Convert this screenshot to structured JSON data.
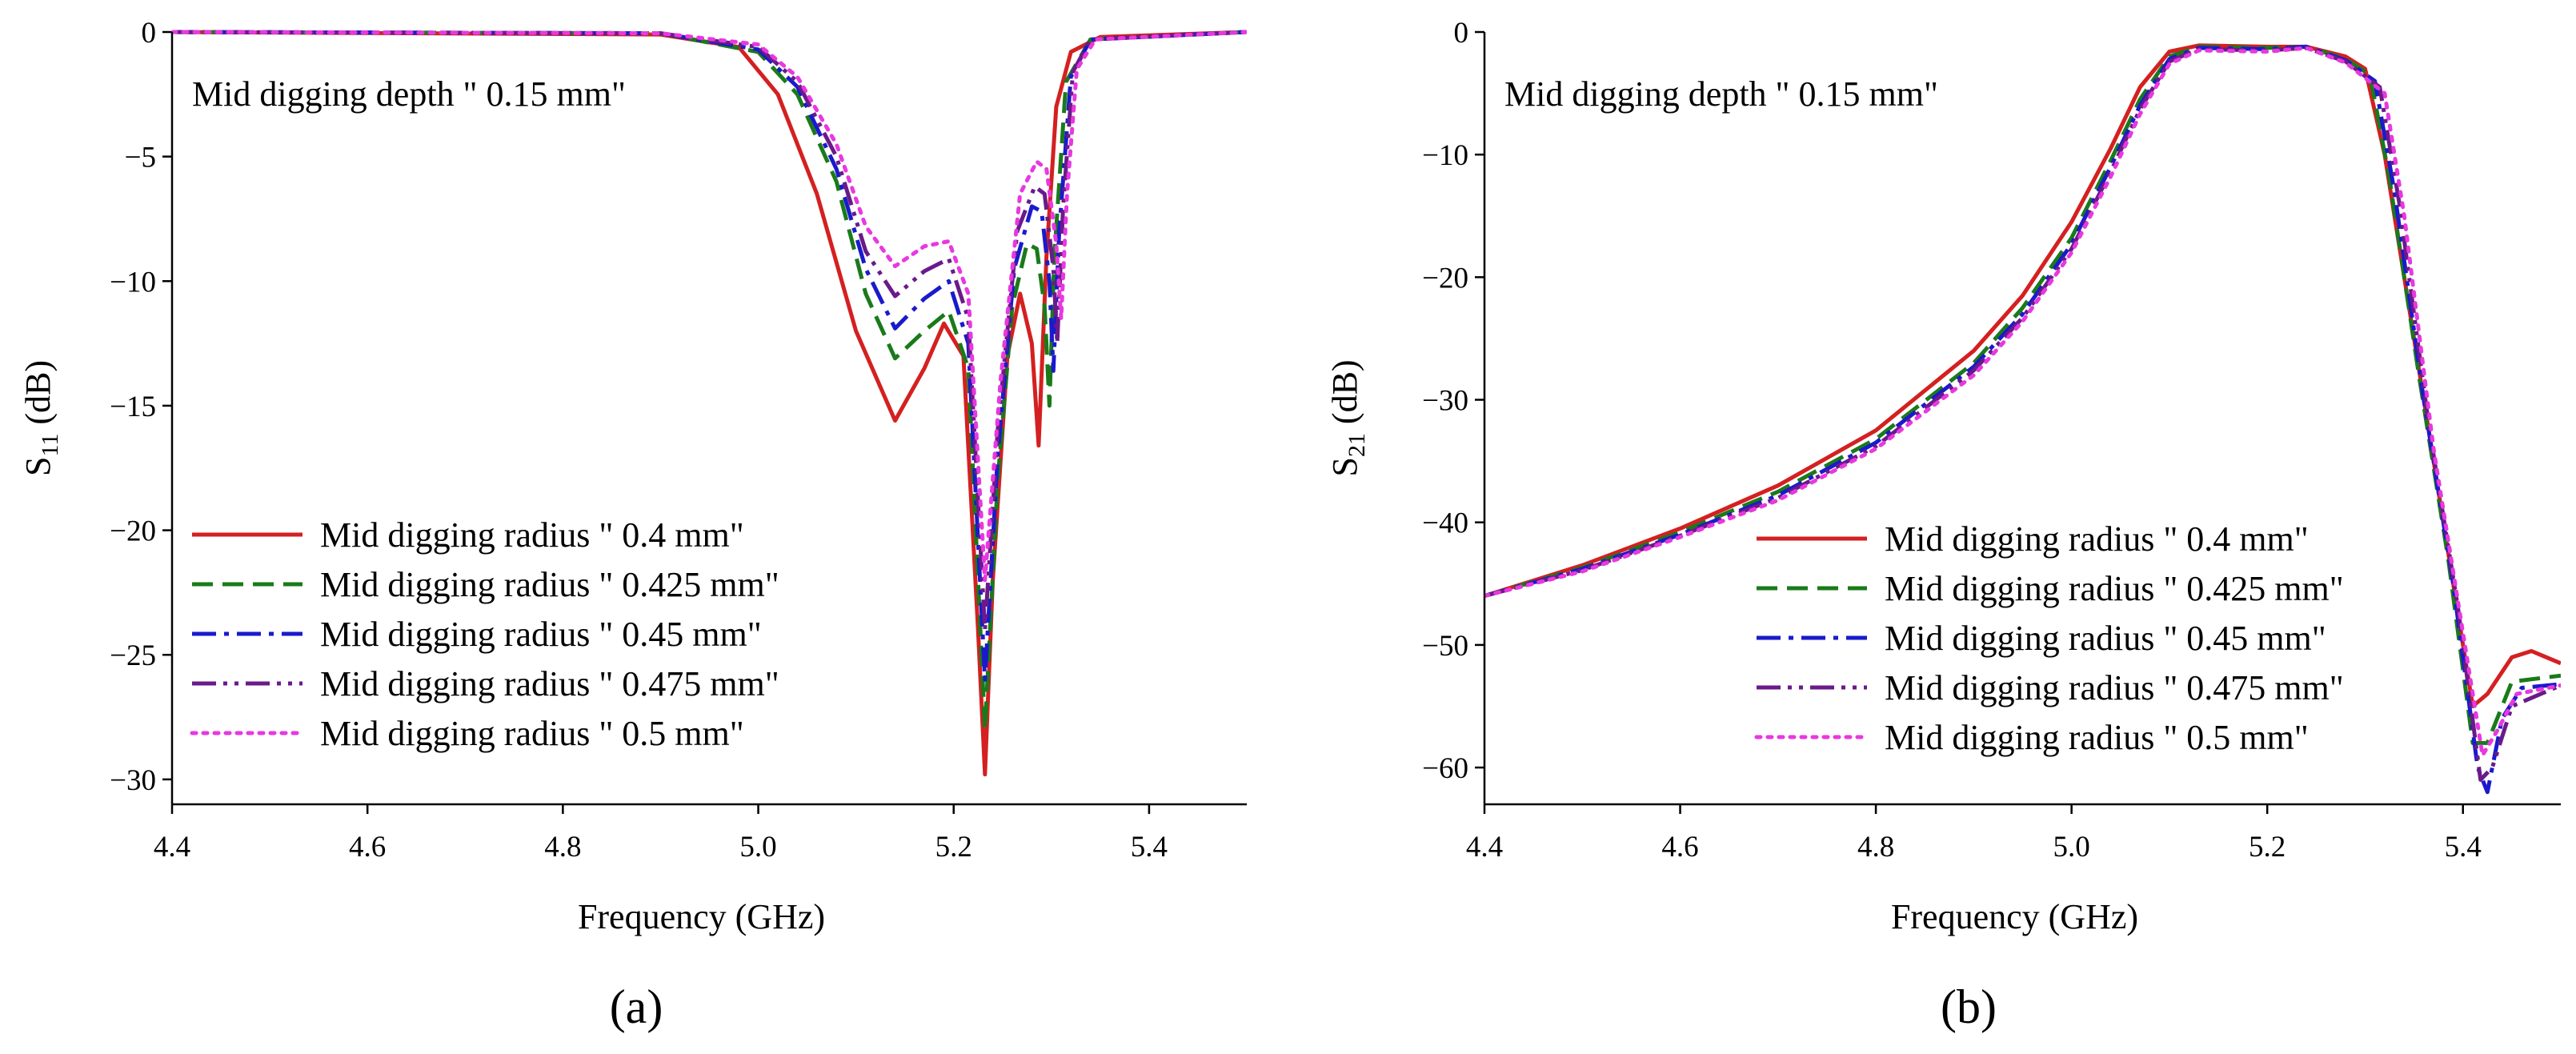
{
  "chart_data": [
    {
      "type": "line",
      "panel_label": "(a)",
      "annotation": "Mid digging depth \" 0.15 mm\"",
      "xlabel": "Frequency (GHz)",
      "ylabel_main": "S",
      "ylabel_sub": "11",
      "ylabel_unit": " (dB)",
      "xlim": [
        4.4,
        5.5
      ],
      "ylim": [
        -31,
        0
      ],
      "xticks": [
        4.4,
        4.6,
        4.8,
        5.0,
        5.2,
        5.4
      ],
      "xtick_labels": [
        "4.4",
        "4.6",
        "4.8",
        "5.0",
        "5.2",
        "5.4"
      ],
      "yticks": [
        0,
        -5,
        -10,
        -15,
        -20,
        -25,
        -30
      ],
      "ytick_labels": [
        "0",
        "−5",
        "−10",
        "−15",
        "−20",
        "−25",
        "−30"
      ],
      "legend_position": "lower-left",
      "series": [
        {
          "name": "Mid digging radius \" 0.4 mm\"",
          "color": "#d42020",
          "dash": "solid",
          "points": [
            [
              4.4,
              0
            ],
            [
              4.9,
              -0.1
            ],
            [
              4.98,
              -0.6
            ],
            [
              5.02,
              -2.5
            ],
            [
              5.06,
              -6.5
            ],
            [
              5.1,
              -12
            ],
            [
              5.14,
              -15.6
            ],
            [
              5.17,
              -13.5
            ],
            [
              5.19,
              -11.7
            ],
            [
              5.21,
              -13
            ],
            [
              5.225,
              -24
            ],
            [
              5.232,
              -29.8
            ],
            [
              5.24,
              -22
            ],
            [
              5.255,
              -13
            ],
            [
              5.268,
              -10.5
            ],
            [
              5.28,
              -12.5
            ],
            [
              5.287,
              -16.6
            ],
            [
              5.295,
              -9
            ],
            [
              5.305,
              -3
            ],
            [
              5.32,
              -0.8
            ],
            [
              5.35,
              -0.2
            ],
            [
              5.5,
              0
            ]
          ]
        },
        {
          "name": "Mid digging radius \" 0.425 mm\"",
          "color": "#1a7a1a",
          "dash": "dashed",
          "points": [
            [
              4.4,
              0
            ],
            [
              4.9,
              -0.05
            ],
            [
              5.0,
              -0.8
            ],
            [
              5.04,
              -2.5
            ],
            [
              5.08,
              -6
            ],
            [
              5.11,
              -10.5
            ],
            [
              5.14,
              -13.1
            ],
            [
              5.17,
              -12
            ],
            [
              5.195,
              -11.2
            ],
            [
              5.215,
              -13.5
            ],
            [
              5.232,
              -28
            ],
            [
              5.245,
              -18
            ],
            [
              5.26,
              -11
            ],
            [
              5.275,
              -8.5
            ],
            [
              5.285,
              -8.7
            ],
            [
              5.293,
              -11
            ],
            [
              5.298,
              -15
            ],
            [
              5.303,
              -9
            ],
            [
              5.315,
              -2
            ],
            [
              5.34,
              -0.3
            ],
            [
              5.5,
              0
            ]
          ]
        },
        {
          "name": "Mid digging radius \" 0.45 mm\"",
          "color": "#1a1acc",
          "dash": "dashdot",
          "points": [
            [
              4.4,
              0
            ],
            [
              4.9,
              -0.05
            ],
            [
              5.0,
              -0.7
            ],
            [
              5.04,
              -2.2
            ],
            [
              5.08,
              -5.5
            ],
            [
              5.11,
              -9.5
            ],
            [
              5.14,
              -11.9
            ],
            [
              5.17,
              -10.7
            ],
            [
              5.195,
              -10.0
            ],
            [
              5.215,
              -12.5
            ],
            [
              5.232,
              -26
            ],
            [
              5.245,
              -17
            ],
            [
              5.262,
              -9.5
            ],
            [
              5.28,
              -7
            ],
            [
              5.29,
              -7.2
            ],
            [
              5.298,
              -10
            ],
            [
              5.302,
              -13.6
            ],
            [
              5.308,
              -8
            ],
            [
              5.32,
              -1.8
            ],
            [
              5.34,
              -0.3
            ],
            [
              5.5,
              0
            ]
          ]
        },
        {
          "name": "Mid digging radius \" 0.475 mm\"",
          "color": "#6a1a8a",
          "dash": "dashdotdot",
          "points": [
            [
              4.4,
              0
            ],
            [
              4.9,
              -0.05
            ],
            [
              5.0,
              -0.6
            ],
            [
              5.04,
              -2
            ],
            [
              5.08,
              -5
            ],
            [
              5.11,
              -8.8
            ],
            [
              5.14,
              -10.6
            ],
            [
              5.17,
              -9.6
            ],
            [
              5.195,
              -9.1
            ],
            [
              5.215,
              -11.5
            ],
            [
              5.232,
              -24
            ],
            [
              5.245,
              -16
            ],
            [
              5.265,
              -8
            ],
            [
              5.283,
              -6.2
            ],
            [
              5.293,
              -6.5
            ],
            [
              5.302,
              -9.5
            ],
            [
              5.306,
              -12.5
            ],
            [
              5.312,
              -7
            ],
            [
              5.322,
              -1.6
            ],
            [
              5.34,
              -0.3
            ],
            [
              5.5,
              0
            ]
          ]
        },
        {
          "name": "Mid digging radius \" 0.5 mm\"",
          "color": "#e838e0",
          "dash": "dotted",
          "points": [
            [
              4.4,
              0
            ],
            [
              4.9,
              -0.05
            ],
            [
              5.0,
              -0.5
            ],
            [
              5.04,
              -1.8
            ],
            [
              5.08,
              -4.5
            ],
            [
              5.11,
              -7.8
            ],
            [
              5.14,
              -9.4
            ],
            [
              5.17,
              -8.6
            ],
            [
              5.195,
              -8.4
            ],
            [
              5.215,
              -10.5
            ],
            [
              5.232,
              -22
            ],
            [
              5.248,
              -14
            ],
            [
              5.268,
              -6.5
            ],
            [
              5.285,
              -5.2
            ],
            [
              5.295,
              -5.5
            ],
            [
              5.305,
              -8.5
            ],
            [
              5.31,
              -11.5
            ],
            [
              5.316,
              -6.5
            ],
            [
              5.326,
              -1.5
            ],
            [
              5.345,
              -0.3
            ],
            [
              5.5,
              0
            ]
          ]
        }
      ]
    },
    {
      "type": "line",
      "panel_label": "(b)",
      "annotation": "Mid digging depth \" 0.15 mm\"",
      "xlabel": "Frequency (GHz)",
      "ylabel_main": "S",
      "ylabel_sub": "21",
      "ylabel_unit": " (dB)",
      "xlim": [
        4.4,
        5.5
      ],
      "ylim": [
        -63,
        0
      ],
      "xticks": [
        4.4,
        4.6,
        4.8,
        5.0,
        5.2,
        5.4
      ],
      "xtick_labels": [
        "4.4",
        "4.6",
        "4.8",
        "5.0",
        "5.2",
        "5.4"
      ],
      "yticks": [
        0,
        -10,
        -20,
        -30,
        -40,
        -50,
        -60
      ],
      "ytick_labels": [
        "0",
        "−10",
        "−20",
        "−30",
        "−40",
        "−50",
        "−60"
      ],
      "legend_position": "lower-right",
      "series": [
        {
          "name": "Mid digging radius \" 0.4 mm\"",
          "color": "#d42020",
          "dash": "solid",
          "points": [
            [
              4.4,
              -46
            ],
            [
              4.5,
              -43.5
            ],
            [
              4.6,
              -40.5
            ],
            [
              4.7,
              -37
            ],
            [
              4.8,
              -32.5
            ],
            [
              4.9,
              -26
            ],
            [
              4.95,
              -21.5
            ],
            [
              5.0,
              -15.5
            ],
            [
              5.04,
              -9.5
            ],
            [
              5.07,
              -4.5
            ],
            [
              5.1,
              -1.6
            ],
            [
              5.13,
              -1.1
            ],
            [
              5.2,
              -1.2
            ],
            [
              5.24,
              -1.2
            ],
            [
              5.28,
              -2
            ],
            [
              5.3,
              -3
            ],
            [
              5.32,
              -10
            ],
            [
              5.35,
              -25
            ],
            [
              5.38,
              -40
            ],
            [
              5.41,
              -55
            ],
            [
              5.425,
              -54
            ],
            [
              5.45,
              -51
            ],
            [
              5.47,
              -50.5
            ],
            [
              5.5,
              -51.5
            ]
          ]
        },
        {
          "name": "Mid digging radius \" 0.425 mm\"",
          "color": "#1a7a1a",
          "dash": "dashed",
          "points": [
            [
              4.4,
              -46
            ],
            [
              4.5,
              -43.7
            ],
            [
              4.6,
              -40.8
            ],
            [
              4.7,
              -37.5
            ],
            [
              4.8,
              -33.2
            ],
            [
              4.9,
              -27
            ],
            [
              4.95,
              -22.5
            ],
            [
              5.0,
              -16.8
            ],
            [
              5.04,
              -10.5
            ],
            [
              5.07,
              -5.5
            ],
            [
              5.1,
              -2
            ],
            [
              5.13,
              -1.2
            ],
            [
              5.2,
              -1.3
            ],
            [
              5.24,
              -1.2
            ],
            [
              5.28,
              -2.2
            ],
            [
              5.305,
              -3.5
            ],
            [
              5.325,
              -12
            ],
            [
              5.355,
              -28
            ],
            [
              5.385,
              -43
            ],
            [
              5.41,
              -58
            ],
            [
              5.425,
              -58
            ],
            [
              5.45,
              -53
            ],
            [
              5.5,
              -52.5
            ]
          ]
        },
        {
          "name": "Mid digging radius \" 0.45 mm\"",
          "color": "#1a1acc",
          "dash": "dashdot",
          "points": [
            [
              4.4,
              -46
            ],
            [
              4.5,
              -43.8
            ],
            [
              4.6,
              -41
            ],
            [
              4.7,
              -37.8
            ],
            [
              4.8,
              -33.5
            ],
            [
              4.9,
              -27.3
            ],
            [
              4.95,
              -23
            ],
            [
              5.0,
              -17.3
            ],
            [
              5.04,
              -11
            ],
            [
              5.07,
              -6
            ],
            [
              5.1,
              -2.2
            ],
            [
              5.13,
              -1.3
            ],
            [
              5.2,
              -1.4
            ],
            [
              5.24,
              -1.2
            ],
            [
              5.28,
              -2.3
            ],
            [
              5.31,
              -4
            ],
            [
              5.33,
              -13
            ],
            [
              5.36,
              -30
            ],
            [
              5.39,
              -45
            ],
            [
              5.415,
              -60
            ],
            [
              5.425,
              -62
            ],
            [
              5.44,
              -56
            ],
            [
              5.46,
              -53.5
            ],
            [
              5.5,
              -53.2
            ]
          ]
        },
        {
          "name": "Mid digging radius \" 0.475 mm\"",
          "color": "#6a1a8a",
          "dash": "dashdotdot",
          "points": [
            [
              4.4,
              -46
            ],
            [
              4.5,
              -43.9
            ],
            [
              4.6,
              -41.1
            ],
            [
              4.7,
              -38
            ],
            [
              4.8,
              -33.8
            ],
            [
              4.9,
              -27.6
            ],
            [
              4.95,
              -23.3
            ],
            [
              5.0,
              -17.7
            ],
            [
              5.04,
              -11.4
            ],
            [
              5.07,
              -6.3
            ],
            [
              5.1,
              -2.4
            ],
            [
              5.13,
              -1.4
            ],
            [
              5.2,
              -1.5
            ],
            [
              5.24,
              -1.3
            ],
            [
              5.28,
              -2.4
            ],
            [
              5.315,
              -4.5
            ],
            [
              5.335,
              -14
            ],
            [
              5.365,
              -32
            ],
            [
              5.395,
              -47
            ],
            [
              5.418,
              -61
            ],
            [
              5.43,
              -60
            ],
            [
              5.45,
              -55
            ],
            [
              5.5,
              -53.3
            ]
          ]
        },
        {
          "name": "Mid digging radius \" 0.5 mm\"",
          "color": "#e838e0",
          "dash": "dotted",
          "points": [
            [
              4.4,
              -46
            ],
            [
              4.5,
              -44
            ],
            [
              4.6,
              -41.2
            ],
            [
              4.7,
              -38.2
            ],
            [
              4.8,
              -34
            ],
            [
              4.9,
              -28
            ],
            [
              4.95,
              -23.6
            ],
            [
              5.0,
              -18
            ],
            [
              5.04,
              -11.8
            ],
            [
              5.07,
              -6.7
            ],
            [
              5.1,
              -2.6
            ],
            [
              5.13,
              -1.5
            ],
            [
              5.2,
              -1.6
            ],
            [
              5.24,
              -1.3
            ],
            [
              5.28,
              -2.5
            ],
            [
              5.32,
              -5
            ],
            [
              5.34,
              -15
            ],
            [
              5.37,
              -34
            ],
            [
              5.4,
              -49
            ],
            [
              5.42,
              -59
            ],
            [
              5.435,
              -57
            ],
            [
              5.455,
              -54
            ],
            [
              5.5,
              -53.3
            ]
          ]
        }
      ]
    }
  ]
}
